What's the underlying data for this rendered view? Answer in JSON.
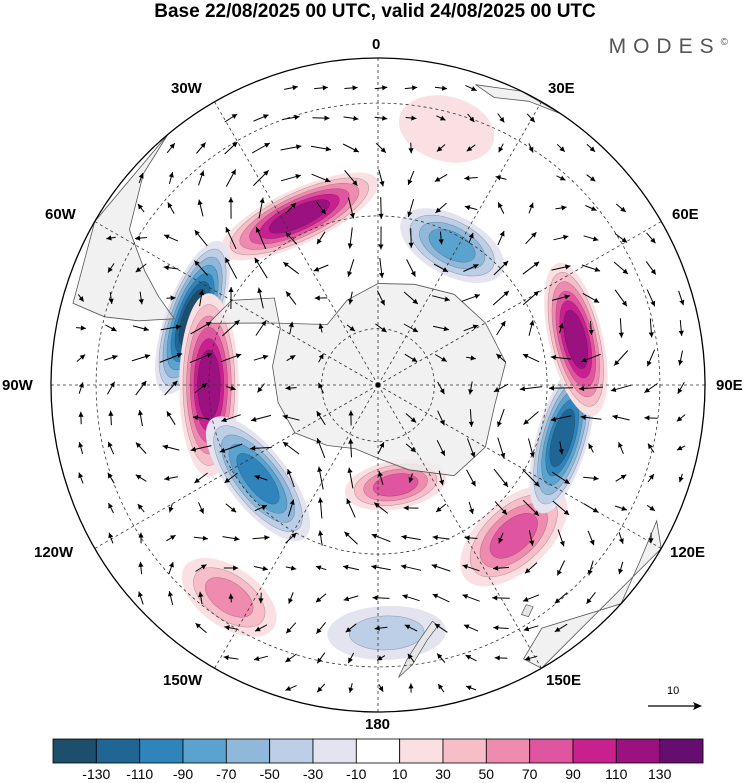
{
  "title": "Base 22/08/2025 00 UTC, valid 24/08/2025 00 UTC",
  "brand": {
    "name": "MODES",
    "mark": "©"
  },
  "map": {
    "projection": "south-polar-stereographic",
    "longitude_labels": {
      "lon_0": "0",
      "lon_30e": "30E",
      "lon_60e": "60E",
      "lon_90e": "90E",
      "lon_120e": "120E",
      "lon_150e": "150E",
      "lon_180": "180",
      "lon_150w": "150W",
      "lon_120w": "120W",
      "lon_90w": "90W",
      "lon_60w": "60W",
      "lon_30w": "30W"
    },
    "anomaly_centers": [
      {
        "sign": "positive",
        "lon": -25,
        "colat": 33,
        "peak": 120
      },
      {
        "sign": "negative",
        "lon": -70,
        "colat": 35,
        "peak": -130
      },
      {
        "sign": "positive",
        "lon": -90,
        "colat": 30,
        "peak": 125
      },
      {
        "sign": "negative",
        "lon": -128,
        "colat": 27,
        "peak": -100
      },
      {
        "sign": "positive",
        "lon": 170,
        "colat": 18,
        "peak": 75
      },
      {
        "sign": "positive",
        "lon": 138,
        "colat": 36,
        "peak": 75
      },
      {
        "sign": "negative",
        "lon": 106,
        "colat": 34,
        "peak": -110
      },
      {
        "sign": "positive",
        "lon": 77,
        "colat": 36,
        "peak": 115
      },
      {
        "sign": "negative",
        "lon": 28,
        "colat": 28,
        "peak": -85
      },
      {
        "sign": "negative",
        "lon": 178,
        "colat": 44,
        "peak": -40
      },
      {
        "sign": "positive",
        "lon": -145,
        "colat": 46,
        "peak": 50
      },
      {
        "sign": "positive",
        "lon": 15,
        "colat": 47,
        "peak": 20
      }
    ],
    "reference_vector": {
      "label": "10",
      "units_value": 10
    }
  },
  "colorbar": {
    "colors": [
      "#1d4f6d",
      "#1f6695",
      "#2f85bb",
      "#5ba3cf",
      "#8fb8da",
      "#bccfe6",
      "#e4e4f1",
      "#ffffff",
      "#fbe0e3",
      "#f7bdc8",
      "#f08bb0",
      "#e0559f",
      "#c8208f",
      "#9b117f",
      "#660e70"
    ],
    "ticks": [
      "-130",
      "-110",
      "-90",
      "-70",
      "-50",
      "-30",
      "-10",
      "10",
      "30",
      "50",
      "70",
      "90",
      "110",
      "130"
    ]
  }
}
